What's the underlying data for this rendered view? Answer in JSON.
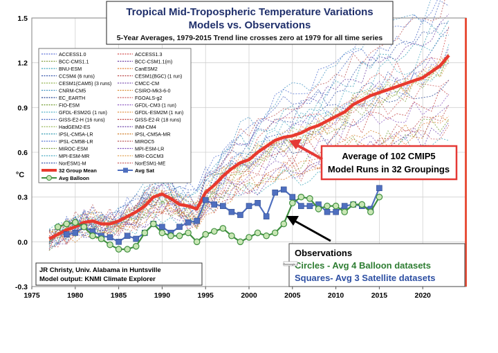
{
  "chart_data": {
    "type": "line",
    "title_line1": "Tropical Mid-Tropospheric Temperature Variations",
    "title_line2": "Models vs. Observations",
    "subtitle": "5-Year Averages, 1979-2015 Trend line crosses zero at 1979 for all time series",
    "ylabel": "°C",
    "xlim": [
      1975,
      2025
    ],
    "ylim": [
      -0.3,
      1.5
    ],
    "x_ticks": [
      "1975",
      "1980",
      "1985",
      "1990",
      "1995",
      "2000",
      "2005",
      "2010",
      "2015",
      "2020"
    ],
    "y_ticks": [
      "-0.3",
      "0.0",
      "0.3",
      "0.6",
      "0.9",
      "1.2",
      "1.5"
    ],
    "grid": true,
    "legend_position": "top-left",
    "legend_model_names": [
      "ACCESS1.0",
      "ACCESS1.3",
      "BCC-CMS1.1",
      "BCC-CSM1.1(m)",
      "BNU-ESM",
      "CanESM2",
      "CCSM4 (6 runs)",
      "CESM1(BGC) (1 run)",
      "CESM1(CAM5) (3 runs)",
      "CMCC-CM",
      "CNRM-CM5",
      "CSIRO-Mk3-6-0",
      "EC_EARTH",
      "FGOALS-g2",
      "FIO-ESM",
      "GFDL-CM3 (1 run)",
      "GFDL-ESM2G (1 run)",
      "GFDL-ESM2M (1 run)",
      "GISS-E2-H (16 runs)",
      "GISS-E2-R (18 runs)",
      "HadGEM2-ES",
      "INM-CM4",
      "IPSL-CM5A-LR",
      "IPSL-CM5A-MR",
      "IPSL-CM5B-LR",
      "MIROC5",
      "MIROC-ESM",
      "MPI-ESM-LR",
      "MPI-ESM-MR",
      "MRI-CGCM3",
      "NorESM1-M",
      "NorESM1-ME"
    ],
    "legend_model_colors": [
      "#5b6fd6",
      "#d24a4a",
      "#7f9d3a",
      "#6a3aa0",
      "#3aa5b8",
      "#e07a2e",
      "#2f4fa8",
      "#b84040",
      "#8fb04a",
      "#7a4fb0",
      "#3f90c0",
      "#d9892f",
      "#203f8f",
      "#cc5a5a",
      "#6e9a2a",
      "#8a55c0",
      "#4fb0c8",
      "#e09040",
      "#4060c0",
      "#c03a3a",
      "#96b858",
      "#6a40a8",
      "#2e98b0",
      "#d07a20",
      "#5070d0",
      "#b85050",
      "#80a040",
      "#7a48b8",
      "#46a8c0",
      "#e0a050",
      "#3050a8",
      "#c85858"
    ],
    "legend_main": [
      {
        "label": "32 Group Mean",
        "color": "#e83a2e",
        "style": "thick-line"
      },
      {
        "label": "Avg Sat",
        "color": "#4f6fbf",
        "style": "square-line"
      },
      {
        "label": "Avg Balloon",
        "color": "#3f8f3f",
        "style": "circle-line"
      }
    ],
    "series": [
      {
        "name": "32 Group Mean",
        "color": "#e83a2e",
        "x": [
          1977,
          1978,
          1979,
          1980,
          1981,
          1982,
          1983,
          1984,
          1985,
          1986,
          1987,
          1988,
          1989,
          1990,
          1991,
          1992,
          1993,
          1994,
          1995,
          1996,
          1997,
          1998,
          1999,
          2000,
          2001,
          2002,
          2003,
          2004,
          2005,
          2006,
          2007,
          2008,
          2009,
          2010,
          2011,
          2012,
          2013,
          2014,
          2015,
          2016,
          2017,
          2018,
          2019,
          2020,
          2021,
          2022,
          2023
        ],
        "values": [
          0.02,
          0.05,
          0.08,
          0.1,
          0.13,
          0.14,
          0.12,
          0.12,
          0.14,
          0.17,
          0.2,
          0.24,
          0.3,
          0.32,
          0.29,
          0.25,
          0.24,
          0.22,
          0.33,
          0.38,
          0.44,
          0.49,
          0.53,
          0.55,
          0.6,
          0.64,
          0.68,
          0.7,
          0.71,
          0.73,
          0.76,
          0.78,
          0.81,
          0.84,
          0.87,
          0.92,
          0.95,
          0.98,
          1.0,
          1.02,
          1.04,
          1.06,
          1.08,
          1.1,
          1.14,
          1.18,
          1.25
        ]
      },
      {
        "name": "Avg Sat",
        "color": "#4f6fbf",
        "x": [
          1979,
          1980,
          1981,
          1982,
          1983,
          1984,
          1985,
          1986,
          1987,
          1988,
          1989,
          1990,
          1991,
          1992,
          1993,
          1994,
          1995,
          1996,
          1997,
          1998,
          1999,
          2000,
          2001,
          2002,
          2003,
          2004,
          2005,
          2006,
          2007,
          2008,
          2009,
          2010,
          2011,
          2012,
          2013,
          2014,
          2015
        ],
        "values": [
          0.05,
          0.06,
          0.1,
          0.07,
          0.04,
          0.03,
          0.0,
          0.04,
          0.02,
          0.06,
          0.12,
          0.1,
          0.06,
          0.1,
          0.13,
          0.14,
          0.28,
          0.25,
          0.24,
          0.2,
          0.18,
          0.24,
          0.26,
          0.17,
          0.33,
          0.35,
          0.3,
          0.24,
          0.24,
          0.25,
          0.2,
          0.2,
          0.24,
          0.25,
          0.24,
          0.22,
          0.36
        ]
      },
      {
        "name": "Avg Balloon",
        "color": "#3f8f3f",
        "x": [
          1978,
          1979,
          1980,
          1981,
          1982,
          1983,
          1984,
          1985,
          1986,
          1987,
          1988,
          1989,
          1990,
          1991,
          1992,
          1993,
          1994,
          1995,
          1996,
          1997,
          1998,
          1999,
          2000,
          2001,
          2002,
          2003,
          2004,
          2005,
          2006,
          2007,
          2008,
          2009,
          2010,
          2011,
          2012,
          2013,
          2014,
          2015
        ],
        "values": [
          0.1,
          0.12,
          0.13,
          0.1,
          0.04,
          0.02,
          -0.02,
          -0.05,
          -0.05,
          -0.03,
          0.06,
          0.12,
          0.06,
          0.04,
          0.04,
          0.06,
          0.0,
          0.05,
          0.07,
          0.09,
          0.04,
          0.0,
          0.03,
          0.06,
          0.04,
          0.06,
          0.12,
          0.26,
          0.3,
          0.29,
          0.22,
          0.24,
          0.24,
          0.2,
          0.25,
          0.25,
          0.2,
          0.3
        ]
      }
    ],
    "annotations": [
      {
        "text": "Average of 102 CMIP5",
        "color": "#000000"
      },
      {
        "text": "Model Runs in 32 Groupings",
        "color": "#000000"
      },
      {
        "text": "Observations",
        "color": "#000000"
      },
      {
        "text": "Circles - Avg 4 Balloon datasets",
        "color": "#2e7d32"
      },
      {
        "text": "Squares- Avg 3 Satellite datasets",
        "color": "#2d4fa3"
      },
      {
        "text": "JR Christy, Univ. Alabama in Huntsville",
        "color": "#000000"
      },
      {
        "text": "Model output: KNMI Climate Explorer",
        "color": "#000000"
      }
    ],
    "small_tag": "Rectangle 4"
  }
}
